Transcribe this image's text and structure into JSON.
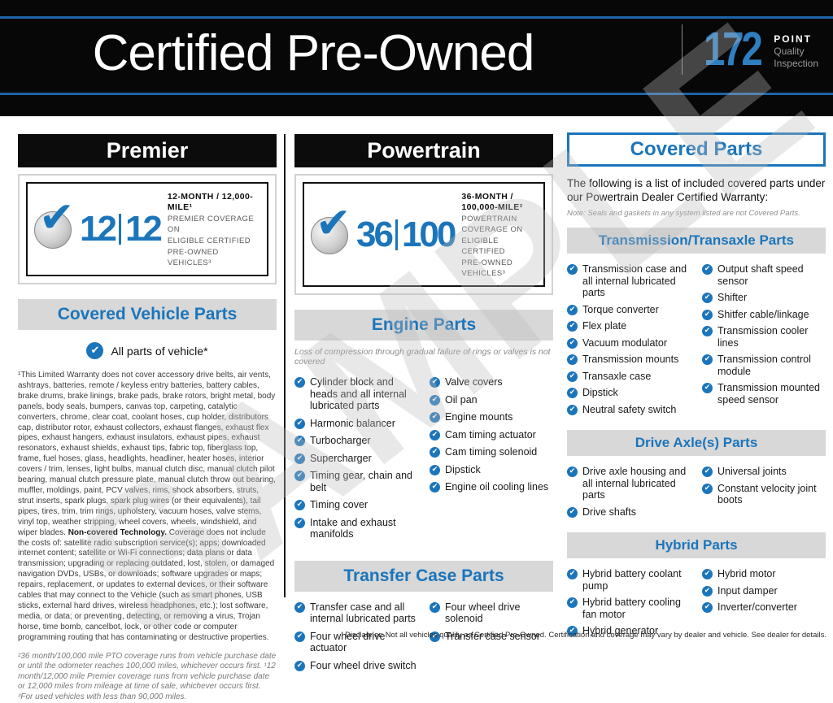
{
  "watermark": "SAMPLE",
  "header": {
    "title": "Certified Pre-Owned",
    "points_number": "172",
    "points_label": "POINT",
    "points_sub1": "Quality",
    "points_sub2": "Inspection"
  },
  "premier": {
    "title": "Premier",
    "badge": {
      "num1": "12",
      "num2": "12",
      "line1": "12-MONTH / 12,000-MILE¹",
      "line2": "PREMIER COVERAGE ON",
      "line3": "ELIGIBLE CERTIFIED",
      "line4": "PRE-OWNED VEHICLES³"
    },
    "covered_bar": "Covered Vehicle Parts",
    "all_parts": "All parts of vehicle*",
    "fine_print": {
      "part1": "¹This Limited Warranty does not cover accessory drive belts, air vents, ashtrays, batteries, remote / keyless entry batteries, battery cables, brake drums, brake linings, brake pads, brake rotors, bright metal, body panels, body seals, bumpers, canvas top, carpeting, catalytic converters, chrome, clear coat, coolant hoses, cup holder, distributors cap, distributor rotor, exhaust collectors, exhaust flanges, exhaust flex pipes, exhaust hangers, exhaust insulators, exhaust pipes, exhaust resonators, exhaust shields, exhaust tips, fabric top, fiberglass top, frame, fuel hoses, glass, headlights, headliner, heater hoses, interior covers / trim, lenses, light bulbs, manual clutch disc, manual clutch pilot bearing, manual clutch pressure plate, manual clutch throw out bearing, muffler, moldings, paint, PCV valves, rims, shock absorbers, struts, strut inserts, spark plugs, spark plug wires (or their equivalents), tail pipes, tires, trim, trim rings, upholstery, vacuum hoses, valve stems, vinyl top, weather stripping, wheel covers, wheels, windshield, and wiper blades. ",
      "bold": "Non-covered Technology.",
      "part2": " Coverage does not include the costs of: satellite radio subscription service(s); apps; downloaded internet content; satellite or Wi-Fi connections; data plans or data transmission; upgrading or replacing outdated, lost, stolen, or damaged navigation DVDs, USBs, or downloads; software upgrades or maps; repairs, replacement, or updates to external devices, or their software cables that may connect to the Vehicle (such as smart phones, USB sticks, external hard drives, wireless headphones, etc.); lost software, media, or data; or preventing, detecting, or removing a virus, Trojan horse, time bomb, cancelbot, lock, or other code or computer programming routing that has contaminating or destructive properties."
    },
    "footnote": "²36 month/100,000 mile PTO coverage runs from vehicle purchase date or until the odometer reaches 100,000 miles, whichever occurs first. ¹12 month/12,000 mile Premier coverage runs from vehicle purchase date or 12,000 miles from mileage at time of sale, whichever occurs first. ³For used vehicles with less than 90,000 miles."
  },
  "powertrain": {
    "title": "Powertrain",
    "badge": {
      "num1": "36",
      "num2": "100",
      "line1": "36-MONTH / 100,000-MILE²",
      "line2": "POWERTRAIN COVERAGE ON",
      "line3": "ELIGIBLE CERTIFIED",
      "line4": "PRE-OWNED VEHICLES³"
    },
    "engine": {
      "bar": "Engine Parts",
      "note": "Loss of compression through gradual failure of rings or valves is not covered",
      "left": [
        "Cylinder block and heads and all internal lubricated parts",
        "Harmonic balancer",
        "Turbocharger",
        "Supercharger",
        "Timing gear, chain and belt",
        "Timing cover",
        "Intake and exhaust manifolds"
      ],
      "right": [
        "Valve covers",
        "Oil pan",
        "Engine mounts",
        "Cam timing actuator",
        "Cam timing solenoid",
        "Dipstick",
        "Engine oil cooling lines"
      ]
    },
    "transfer": {
      "bar": "Transfer Case Parts",
      "left": [
        "Transfer case and all internal lubricated parts",
        "Four wheel drive actuator",
        "Four wheel drive switch"
      ],
      "right": [
        "Four wheel drive solenoid",
        "Transfer case sensor"
      ]
    }
  },
  "covered": {
    "title": "Covered Parts",
    "intro": "The following is a list of included covered parts under our Powertrain Dealer Certified Warranty:",
    "note": "Note: Seals and gaskets in any system listed are not Covered Parts.",
    "transmission": {
      "bar": "Transmission/Transaxle Parts",
      "left": [
        "Transmission case and all internal lubricated parts",
        "Torque converter",
        "Flex plate",
        "Vacuum modulator",
        "Transmission mounts",
        "Transaxle case",
        "Dipstick",
        "Neutral safety switch"
      ],
      "right": [
        "Output shaft speed sensor",
        "Shifter",
        "Shitfer cable/linkage",
        "Transmission cooler lines",
        "Transmission control module",
        "Transmission mounted speed sensor"
      ]
    },
    "drive_axle": {
      "bar": "Drive Axle(s) Parts",
      "left": [
        "Drive axle housing and all internal lubricated parts",
        "Drive shafts"
      ],
      "right": [
        "Universal joints",
        "Constant velocity joint boots"
      ]
    },
    "hybrid": {
      "bar": "Hybrid Parts",
      "left": [
        "Hybrid battery coolant pump",
        "Hybrid battery cooling fan motor",
        "Hybrid generator"
      ],
      "right": [
        "Hybrid motor",
        "Input damper",
        "Inverter/converter"
      ]
    }
  },
  "disclaimer": "Disclaimer: Not all vehicles qualify as Certified Pre-Owned. Certification and coverage may vary by dealer and vehicle. See dealer for details."
}
